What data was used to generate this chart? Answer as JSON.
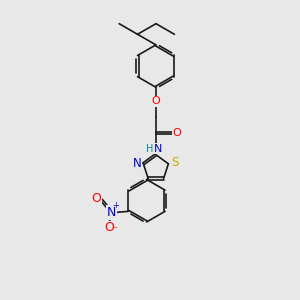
{
  "bg_color": "#e8e8e8",
  "bond_color": "#1a1a1a",
  "bond_width": 1.2,
  "dbo": 0.035,
  "atom_colors": {
    "O": "#ff0000",
    "N": "#0000cc",
    "S": "#ccaa00",
    "HN_H": "#008888",
    "HN_N": "#0000cc"
  },
  "fs": 7.5,
  "fig_size": [
    3.0,
    3.0
  ],
  "dpi": 100
}
